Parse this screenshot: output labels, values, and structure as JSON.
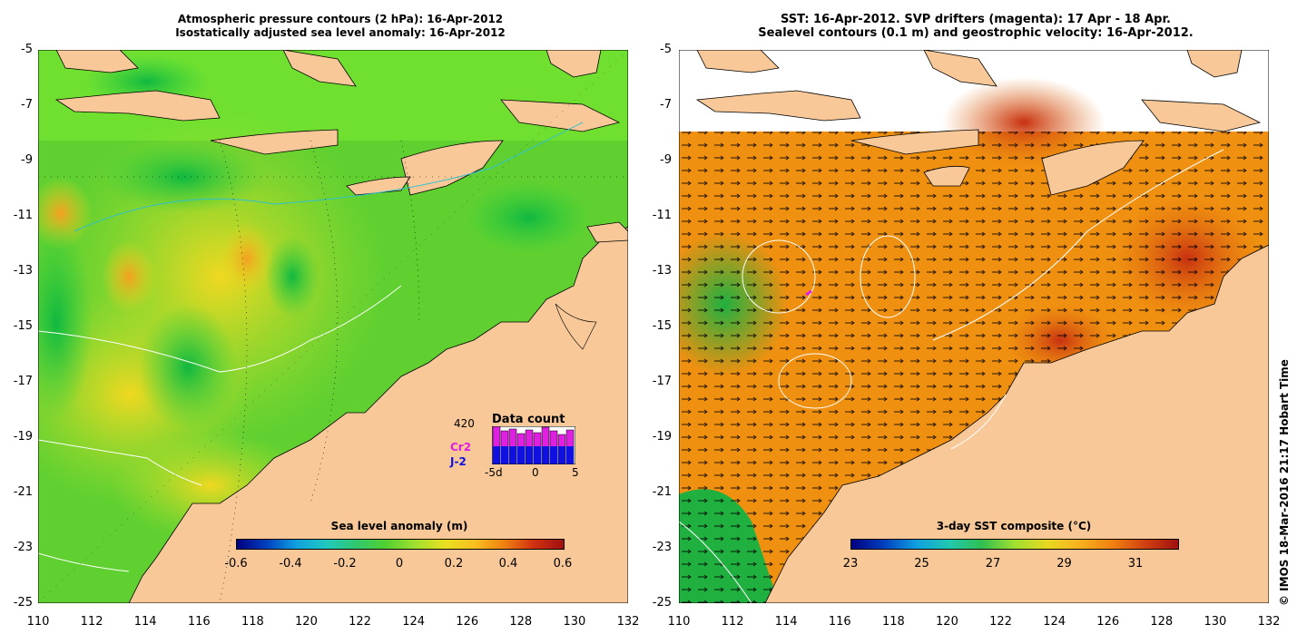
{
  "left_panel": {
    "title_line1": "Atmospheric pressure contours (2 hPa): 16-Apr-2012",
    "title_line2": "Isostatically adjusted sea level anomaly: 16-Apr-2012",
    "colorbar": {
      "title": "Sea level anomaly (m)",
      "labels": [
        "-0.6",
        "-0.4",
        "-0.2",
        "0",
        "0.2",
        "0.4",
        "0.6"
      ]
    },
    "data_count": {
      "title": "Data count",
      "max_value": "420",
      "series1_label": "Cr2",
      "series2_label": "J-2",
      "axis_labels": [
        "-5d",
        "0",
        "5"
      ],
      "series1_color": "#e020e0",
      "series2_color": "#1010e0"
    }
  },
  "right_panel": {
    "title_line1": "SST: 16-Apr-2012. SVP drifters (magenta): 17 Apr - 18 Apr.",
    "title_line2": "Sealevel contours (0.1 m) and geostrophic velocity: 16-Apr-2012.",
    "colorbar": {
      "title": "3-day SST composite (°C)",
      "labels": [
        "23",
        "25",
        "27",
        "29",
        "31"
      ]
    }
  },
  "axes": {
    "y_ticks": [
      "-5",
      "-7",
      "-9",
      "-11",
      "-13",
      "-15",
      "-17",
      "-19",
      "-21",
      "-23",
      "-25"
    ],
    "x_ticks": [
      "110",
      "112",
      "114",
      "116",
      "118",
      "120",
      "122",
      "124",
      "126",
      "128",
      "130",
      "132"
    ]
  },
  "copyright": "© IMOS 18-Mar-2016 21:17 Hobart Time",
  "colors": {
    "land": "#f8c898",
    "ocean_green": "#30d040",
    "ocean_orange": "#f09010"
  }
}
